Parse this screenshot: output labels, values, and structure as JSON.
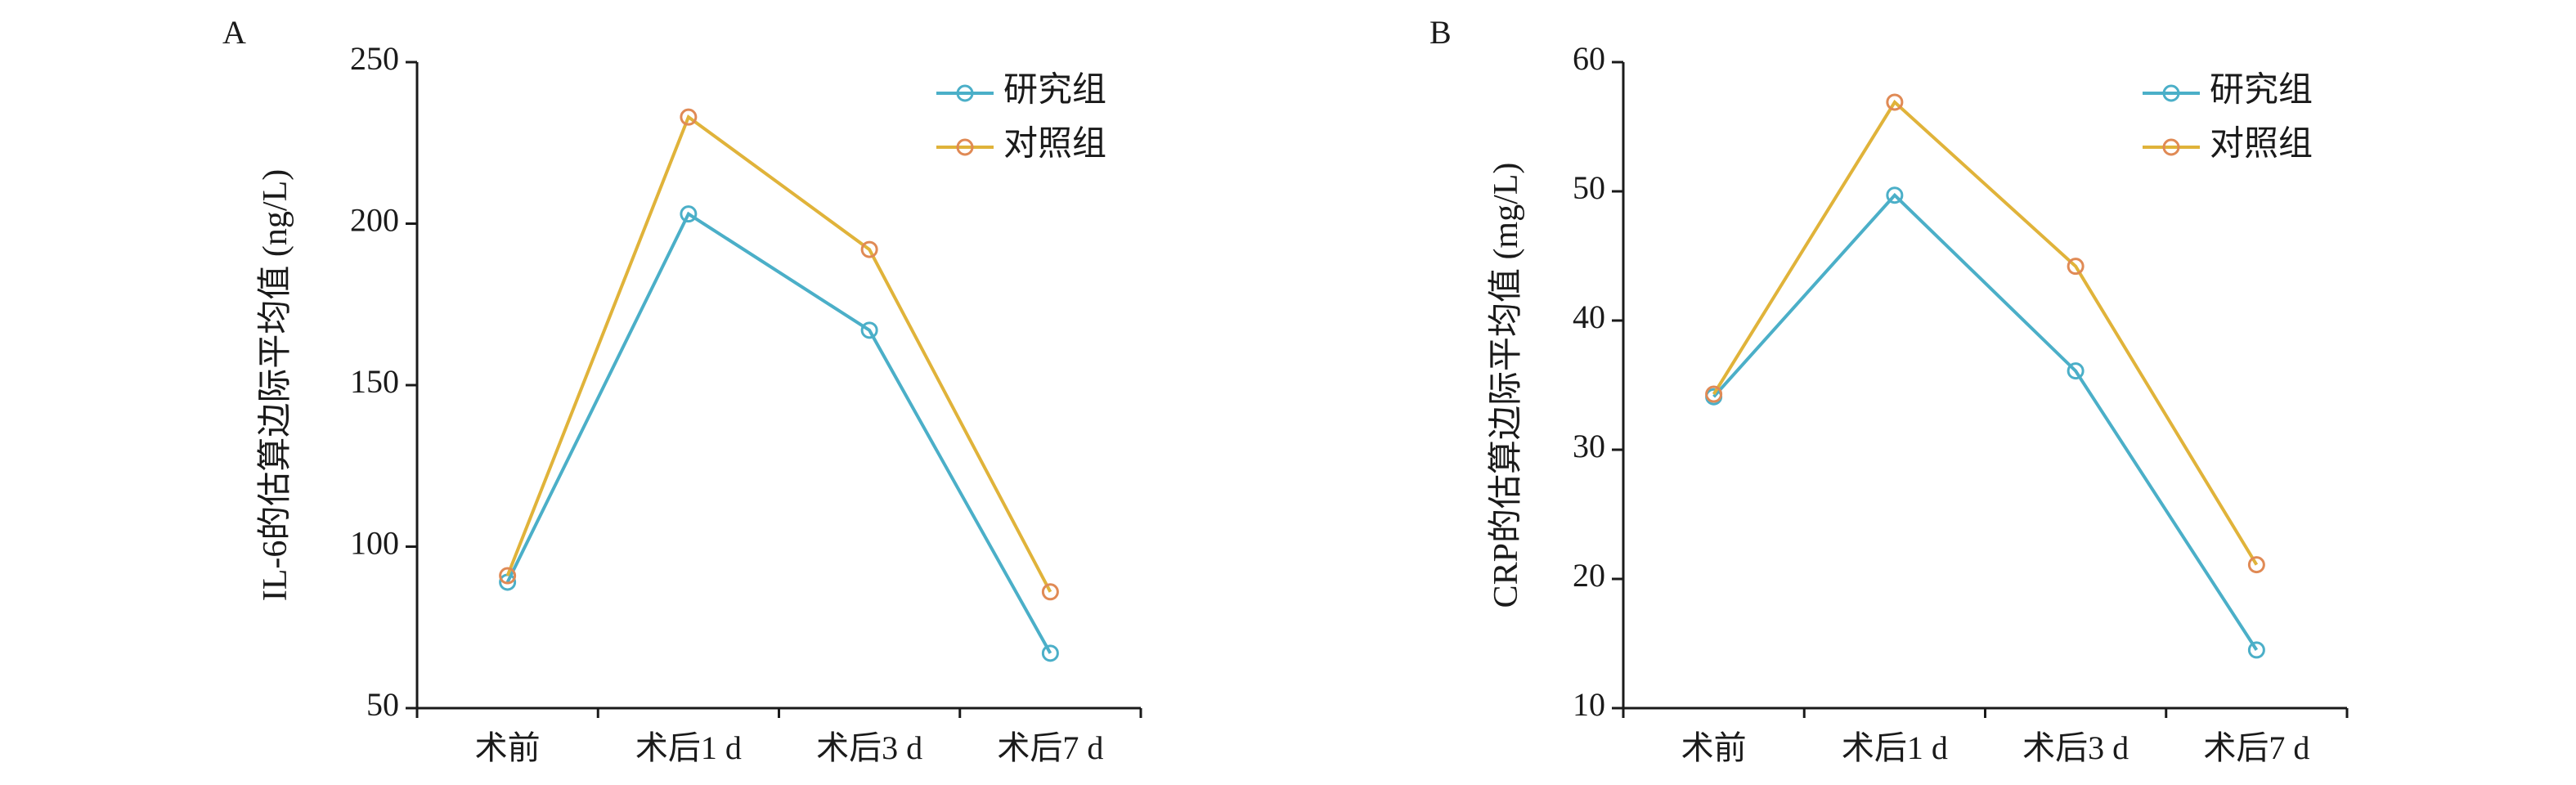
{
  "colors": {
    "study": "#4BAFC8",
    "control": "#E0B33A",
    "control_marker": "#E08A55",
    "axis": "#1a1a1a"
  },
  "chart_data": [
    {
      "panel_label": "A",
      "type": "line",
      "categories": [
        "术前",
        "术后1 d",
        "术后3 d",
        "术后7 d"
      ],
      "ylabel": "IL-6的估算边际平均值 (ng/L)",
      "xlabel": "",
      "ylim": [
        50,
        250
      ],
      "yticks": [
        50,
        100,
        150,
        200,
        250
      ],
      "grid": false,
      "legend_position": "top-right",
      "series": [
        {
          "name": "研究组",
          "values": [
            89,
            203,
            167,
            67
          ]
        },
        {
          "name": "对照组",
          "values": [
            91,
            233,
            192,
            86
          ]
        }
      ]
    },
    {
      "panel_label": "B",
      "type": "line",
      "categories": [
        "术前",
        "术后1 d",
        "术后3 d",
        "术后7 d"
      ],
      "ylabel": "CRP的估算边际平均值 (mg/L)",
      "xlabel": "",
      "ylim": [
        10,
        60
      ],
      "yticks": [
        10,
        20,
        30,
        40,
        50,
        60
      ],
      "grid": false,
      "legend_position": "top-right",
      "series": [
        {
          "name": "研究组",
          "values": [
            34.1,
            49.7,
            36.1,
            14.5
          ]
        },
        {
          "name": "对照组",
          "values": [
            34.3,
            56.9,
            44.2,
            21.1
          ]
        }
      ]
    }
  ]
}
